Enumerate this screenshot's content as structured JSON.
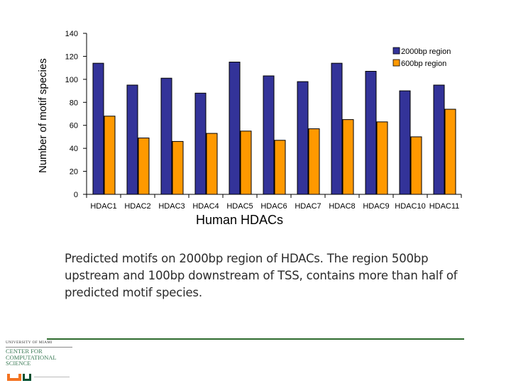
{
  "chart_data": {
    "type": "bar",
    "title": "",
    "xlabel": "Human HDACs",
    "ylabel": "Number of motif species",
    "ylim": [
      0,
      140
    ],
    "yticks": [
      0,
      20,
      40,
      60,
      80,
      100,
      120,
      140
    ],
    "categories": [
      "HDAC1",
      "HDAC2",
      "HDAC3",
      "HDAC4",
      "HDAC5",
      "HDAC6",
      "HDAC7",
      "HDAC8",
      "HDAC9",
      "HDAC10",
      "HDAC11"
    ],
    "series": [
      {
        "name": "2000bp region",
        "color": "#333399",
        "values": [
          114,
          95,
          101,
          88,
          115,
          103,
          98,
          114,
          107,
          90,
          95
        ]
      },
      {
        "name": "600bp region",
        "color": "#ff9900",
        "values": [
          68,
          49,
          46,
          53,
          55,
          47,
          57,
          65,
          63,
          50,
          74
        ]
      }
    ],
    "legend_position": "top-right",
    "grid": false
  },
  "caption": "Predicted motifs on 2000bp region of HDACs. The region 500bp upstream and 100bp downstream of TSS, contains more than half of predicted motif species.",
  "logo": {
    "university": "UNIVERSITY OF MIAMI",
    "center_name": "CENTER for COMPUTATIONAL SCIENCE"
  }
}
